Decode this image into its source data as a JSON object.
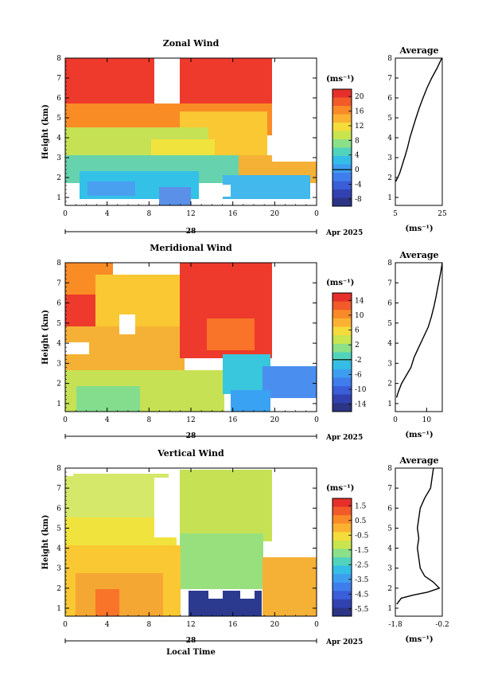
{
  "figure": {
    "date_label": "Apr 2025",
    "day_label": "28",
    "xlabel": "Local Time",
    "ylabel": "Height (km)",
    "unit_label": "(ms⁻¹)",
    "average_title": "Average"
  },
  "panels": [
    {
      "id": "zonal",
      "title": "Zonal Wind",
      "colorbar_ticks": [
        "20",
        "16",
        "12",
        "8",
        "4",
        "0",
        "-4",
        "-8"
      ],
      "colorbar_zero_index": 5
    },
    {
      "id": "meridional",
      "title": "Meridional Wind",
      "colorbar_ticks": [
        "14",
        "10",
        "6",
        "2",
        "-2",
        "-6",
        "-10",
        "-14"
      ],
      "colorbar_zero_index": 4
    },
    {
      "id": "vertical",
      "title": "Vertical Wind",
      "colorbar_ticks": [
        "1.5",
        "0.5",
        "-0.5",
        "-1.5",
        "-2.5",
        "-3.5",
        "-4.5",
        "-5.5"
      ],
      "colorbar_zero_index": -1
    }
  ],
  "chart_data": [
    {
      "type": "heatmap",
      "title": "Zonal Wind",
      "xlabel": "",
      "ylabel": "Height (km)",
      "x_ticks": [
        "0",
        "4",
        "8",
        "12",
        "16",
        "20",
        "0"
      ],
      "y_ticks": [
        "1",
        "2",
        "3",
        "4",
        "5",
        "6",
        "7",
        "8"
      ],
      "xlim": [
        0,
        24
      ],
      "ylim": [
        0.6,
        8
      ],
      "colorbar_label": "(ms⁻¹)",
      "colorbar_range": [
        -10,
        22
      ],
      "data_gaps": "white",
      "approx_field_ms": {
        "above_6km_0_8h": 22,
        "above_6km_11_20h": 22,
        "3_to_5km": 10,
        "below_3km_0_10h": 3,
        "below_2km_3_10h": -2
      }
    },
    {
      "type": "line",
      "title": "Average",
      "xlabel": "(ms⁻¹)",
      "ylabel": "",
      "x_ticks": [
        "5",
        "25"
      ],
      "y_ticks": [
        "1",
        "2",
        "3",
        "4",
        "5",
        "6",
        "7",
        "8"
      ],
      "xlim": [
        5,
        25
      ],
      "ylim": [
        0.6,
        8
      ],
      "x": [
        5.2,
        6.0,
        6.8,
        7.6,
        8.4,
        9.2,
        10.2,
        11.2,
        12.5,
        13.8,
        15.2,
        16.8,
        18.5,
        20.5,
        22.8,
        24.8
      ],
      "y": [
        1.8,
        2.0,
        2.2,
        2.5,
        2.8,
        3.1,
        3.5,
        4.0,
        4.5,
        5.0,
        5.5,
        6.0,
        6.5,
        7.0,
        7.5,
        8.0
      ]
    },
    {
      "type": "heatmap",
      "title": "Meridional Wind",
      "xlabel": "",
      "ylabel": "Height (km)",
      "x_ticks": [
        "0",
        "4",
        "8",
        "12",
        "16",
        "20",
        "0"
      ],
      "y_ticks": [
        "1",
        "2",
        "3",
        "4",
        "5",
        "6",
        "7",
        "8"
      ],
      "xlim": [
        0,
        24
      ],
      "ylim": [
        0.6,
        8
      ],
      "colorbar_label": "(ms⁻¹)",
      "colorbar_range": [
        -16,
        16
      ],
      "data_gaps": "white",
      "approx_field_ms": {
        "above_4km_11_20h": 16,
        "5_to_7km_0_3h": 16,
        "2_to_5km_0_11h": 8,
        "below_3km_16_24h": -8
      }
    },
    {
      "type": "line",
      "title": "Average",
      "xlabel": "(ms⁻¹)",
      "ylabel": "",
      "x_ticks": [
        "0",
        "10"
      ],
      "y_ticks": [
        "1",
        "2",
        "3",
        "4",
        "5",
        "6",
        "7",
        "8"
      ],
      "xlim": [
        0,
        15
      ],
      "ylim": [
        0.6,
        8
      ],
      "x": [
        0.4,
        1.0,
        2.0,
        3.5,
        5.0,
        6.0,
        7.5,
        9.0,
        10.5,
        11.5,
        12.3,
        13.0,
        13.6,
        14.1,
        14.6,
        15.0
      ],
      "y": [
        1.3,
        1.6,
        2.0,
        2.4,
        2.8,
        3.3,
        3.8,
        4.3,
        4.8,
        5.3,
        5.8,
        6.3,
        6.8,
        7.2,
        7.6,
        8.0
      ]
    },
    {
      "type": "heatmap",
      "title": "Vertical Wind",
      "xlabel": "Local Time",
      "ylabel": "Height (km)",
      "x_ticks": [
        "0",
        "4",
        "8",
        "12",
        "16",
        "20",
        "0"
      ],
      "y_ticks": [
        "1",
        "2",
        "3",
        "4",
        "5",
        "6",
        "7",
        "8"
      ],
      "xlim": [
        0,
        24
      ],
      "ylim": [
        0.6,
        8
      ],
      "colorbar_label": "(ms⁻¹)",
      "colorbar_range": [
        -6,
        2
      ],
      "data_gaps": "white",
      "approx_field_ms": {
        "above_4km": -1.3,
        "below_3km_0_12h": 0.8,
        "below_1.5km_12_19h": -6
      }
    },
    {
      "type": "line",
      "title": "Average",
      "xlabel": "(ms⁻¹)",
      "ylabel": "",
      "x_ticks": [
        "-1.8",
        "-0.2"
      ],
      "y_ticks": [
        "1",
        "2",
        "3",
        "4",
        "5",
        "6",
        "7",
        "8"
      ],
      "xlim": [
        -1.8,
        -0.2
      ],
      "ylim": [
        0.6,
        8
      ],
      "x": [
        -1.75,
        -1.6,
        -1.2,
        -0.7,
        -0.3,
        -0.5,
        -0.8,
        -0.95,
        -1.0,
        -1.05,
        -1.0,
        -1.05,
        -1.0,
        -0.95,
        -0.8,
        -0.6,
        -0.5
      ],
      "y": [
        1.2,
        1.5,
        1.65,
        1.8,
        2.0,
        2.3,
        2.6,
        3.0,
        3.5,
        4.0,
        4.5,
        5.0,
        5.5,
        6.0,
        6.5,
        7.0,
        8.0
      ]
    }
  ]
}
